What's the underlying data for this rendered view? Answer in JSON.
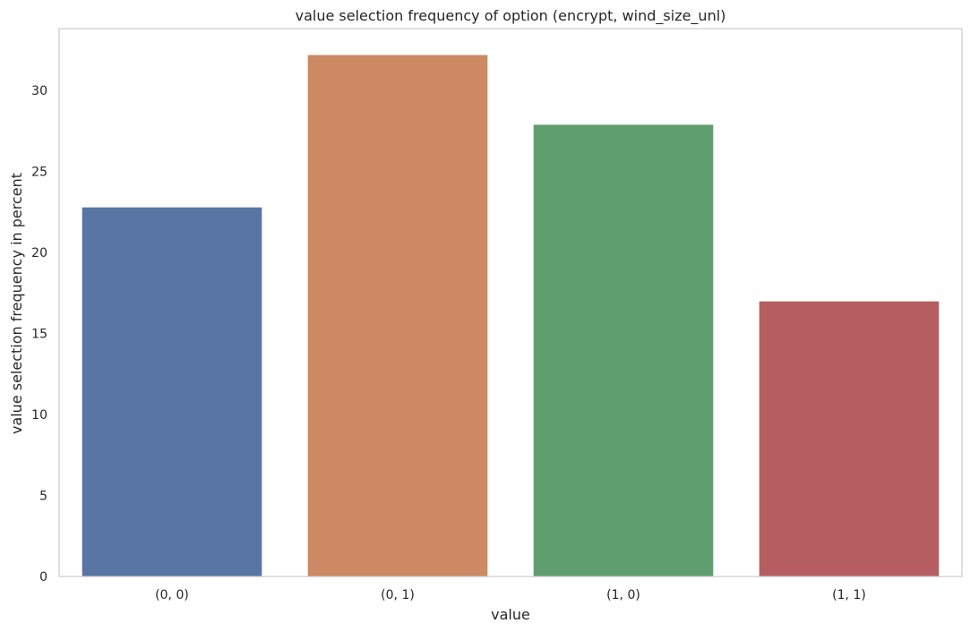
{
  "chart_data": {
    "type": "bar",
    "title": "value selection frequency of option (encrypt, wind_size_unl)",
    "xlabel": "value",
    "ylabel": "value selection frequency in percent",
    "categories": [
      "(0, 0)",
      "(0, 1)",
      "(1, 0)",
      "(1, 1)"
    ],
    "values": [
      22.8,
      32.2,
      27.9,
      17.0
    ],
    "colors": [
      "#5875a4",
      "#cc8963",
      "#5f9e6e",
      "#b55d60"
    ],
    "ylim": [
      0,
      33.8
    ],
    "yticks": [
      0,
      5,
      10,
      15,
      20,
      25,
      30
    ],
    "grid": false,
    "legend": "none"
  }
}
